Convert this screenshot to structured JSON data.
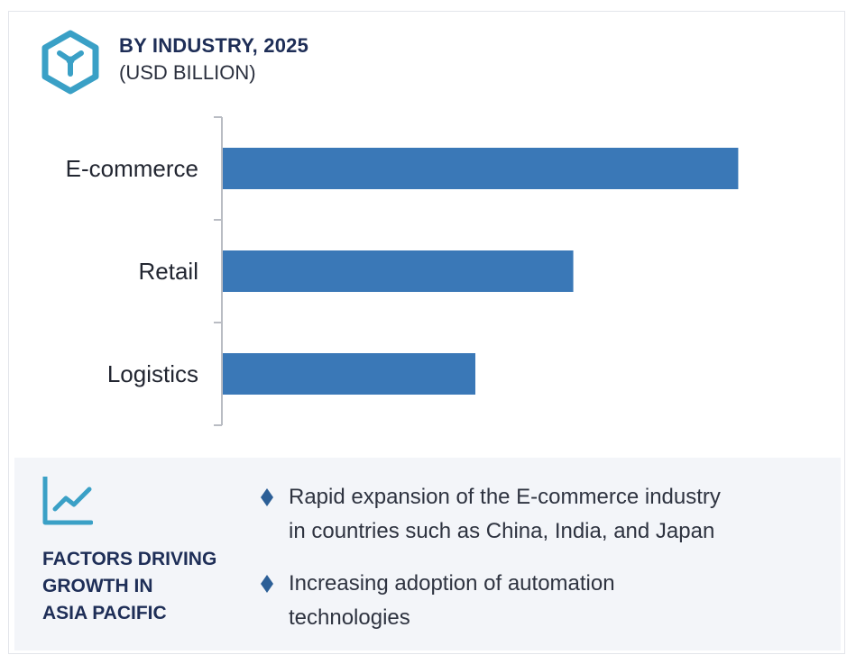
{
  "header": {
    "title": "BY INDUSTRY, 2025",
    "subtitle": "(USD BILLION)",
    "icon": "hexagon-y-icon",
    "icon_color": "#3aa0c6"
  },
  "chart_data": {
    "type": "bar",
    "orientation": "horizontal",
    "title": "BY INDUSTRY, 2025",
    "subtitle": "(USD BILLION)",
    "categories": [
      "E-commerce",
      "Retail",
      "Logistics"
    ],
    "values": [
      100,
      68,
      49
    ],
    "value_scale": "relative (no numeric axis shown)",
    "xlim": [
      0,
      105
    ],
    "bar_color": "#3a78b7",
    "grid": false,
    "legend": "none"
  },
  "factors": {
    "icon": "trend-line-icon",
    "heading_lines": [
      "FACTORS DRIVING",
      "GROWTH IN",
      "ASIA PACIFIC"
    ],
    "items": [
      {
        "lines": [
          "Rapid expansion of the E-commerce industry",
          "in countries such as China, India, and Japan"
        ]
      },
      {
        "lines": [
          "Increasing adoption of automation",
          "technologies"
        ]
      }
    ],
    "bullet_color": "#2c5f97",
    "panel_color": "#f3f5f9"
  }
}
